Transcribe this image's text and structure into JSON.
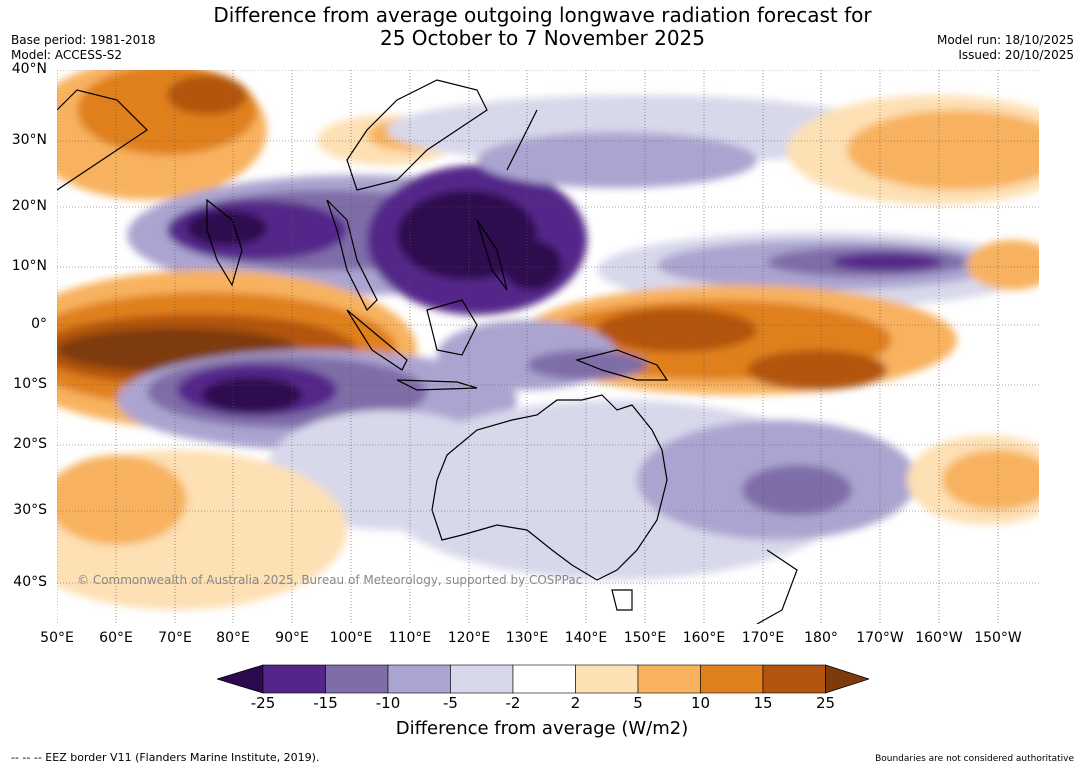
{
  "title": {
    "line1": "Difference from average outgoing longwave radiation forecast for",
    "line2": "25 October to 7 November 2025"
  },
  "meta": {
    "base_period": "Base period: 1981-2018",
    "model": "Model: ACCESS-S2",
    "model_run": "Model run: 18/10/2025",
    "issued": "Issued: 20/10/2025"
  },
  "axes": {
    "lat_labels": [
      "40°N",
      "30°N",
      "20°N",
      "10°N",
      "0°",
      "10°S",
      "20°S",
      "30°S",
      "40°S"
    ],
    "lon_labels": [
      "50°E",
      "60°E",
      "70°E",
      "80°E",
      "90°E",
      "100°E",
      "110°E",
      "120°E",
      "130°E",
      "140°E",
      "150°E",
      "160°E",
      "170°E",
      "180°",
      "170°W",
      "160°W",
      "150°W"
    ]
  },
  "copyright": "© Commonwealth of Australia 2025, Bureau of Meteorology, supported by COSPPac",
  "legend": {
    "labels": [
      "-25",
      "-15",
      "-10",
      "-5",
      "-2",
      "2",
      "5",
      "10",
      "15",
      "25"
    ],
    "colors": [
      "#2d0a4f",
      "#55268a",
      "#7f6da8",
      "#aba4d0",
      "#d8d8eb",
      "#ffffff",
      "#fde0b4",
      "#f8b25e",
      "#e0801c",
      "#b35510",
      "#7e3a0b"
    ],
    "title": "Difference from average (W/m2)"
  },
  "footer": {
    "eez": "--  --  -- EEZ border V11 (Flanders Marine Institute, 2019).",
    "disclaimer": "Boundaries are not considered authoritative"
  }
}
